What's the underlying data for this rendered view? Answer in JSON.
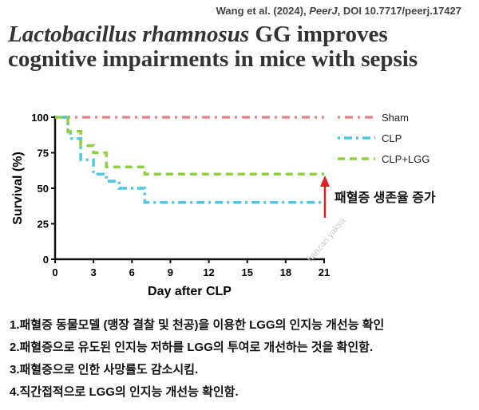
{
  "citation": {
    "authors": "Wang et al. (2024), ",
    "journal": "PeerJ",
    "doi": ", DOI 10.7717/peerj.17427"
  },
  "title": {
    "species": "Lactobacillus rhamnosus",
    "rest": " GG improves cognitive impairments in mice with sepsis"
  },
  "annotation": "패혈증 생존율 증가",
  "watermark": "hanzan.yaksa",
  "chart_data": {
    "type": "line",
    "xlabel": "Day after CLP",
    "ylabel": "Survival (%)",
    "xlim": [
      0,
      21
    ],
    "ylim": [
      0,
      100
    ],
    "xticks": [
      0,
      3,
      6,
      9,
      12,
      15,
      18,
      21
    ],
    "yticks": [
      0,
      25,
      50,
      75,
      100
    ],
    "legend_position": "right",
    "series": [
      {
        "name": "Sham",
        "color": "#e88585",
        "dash": "3,6,10,6",
        "steps": [
          [
            0,
            100
          ],
          [
            21,
            100
          ]
        ]
      },
      {
        "name": "CLP",
        "color": "#4cc8e6",
        "dash": "3,5,10,5",
        "steps": [
          [
            0,
            100
          ],
          [
            1,
            90
          ],
          [
            1.2,
            85
          ],
          [
            2,
            70
          ],
          [
            3,
            60
          ],
          [
            4,
            55
          ],
          [
            5,
            50
          ],
          [
            7,
            40
          ],
          [
            21,
            40
          ]
        ]
      },
      {
        "name": "CLP+LGG",
        "color": "#8fd13c",
        "dash": "9,6",
        "steps": [
          [
            0,
            100
          ],
          [
            1,
            90
          ],
          [
            2,
            80
          ],
          [
            3,
            75
          ],
          [
            4,
            65
          ],
          [
            7,
            60
          ],
          [
            21,
            60
          ]
        ]
      }
    ],
    "arrow_color": "#e02020"
  },
  "findings": [
    "1.패혈증 동물모델 (맹장 결찰 및 천공)을 이용한 LGG의 인지능 개선능 확인",
    "2.패혈증으로 유도된 인지능 저하를 LGG의 투여로 개선하는 것을 확인함.",
    "3.패혈증으로 인한 사망률도 감소시킴.",
    "4.직간접적으로 LGG의 인지능 개선능 확인함."
  ]
}
